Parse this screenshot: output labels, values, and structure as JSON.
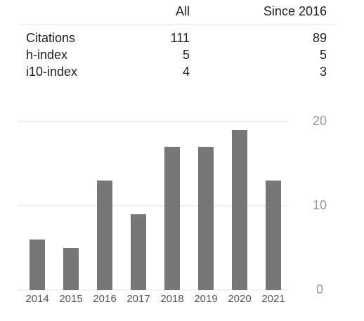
{
  "table": {
    "header": [
      "All",
      "Since 2016"
    ],
    "rows": [
      [
        "Citations",
        111,
        89
      ],
      [
        "h-index",
        5,
        5
      ],
      [
        "i10-index",
        4,
        3
      ]
    ]
  },
  "chart_data": {
    "type": "bar",
    "categories": [
      "2014",
      "2015",
      "2016",
      "2017",
      "2018",
      "2019",
      "2020",
      "2021"
    ],
    "values": [
      6,
      5,
      13,
      9,
      17,
      17,
      19,
      13
    ],
    "color": "#777777",
    "ylim": [
      0,
      20
    ],
    "yticks": [
      0,
      10,
      20
    ],
    "grid": true
  }
}
